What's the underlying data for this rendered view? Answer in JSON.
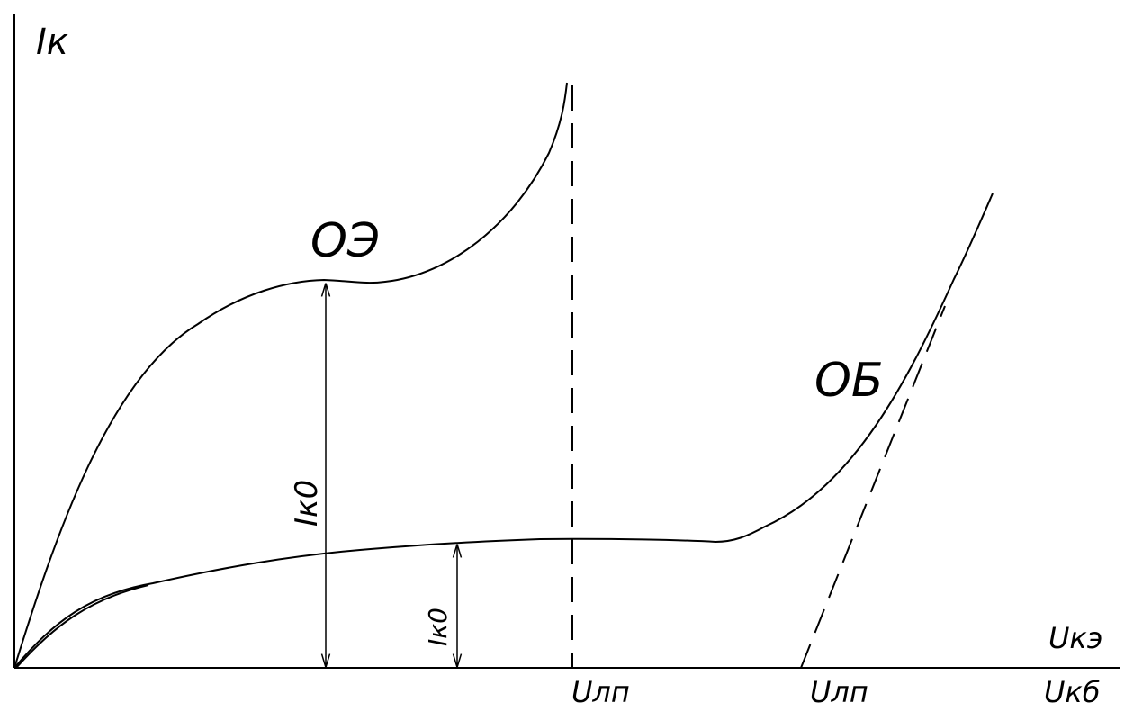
{
  "axes": {
    "y_label": "Iк",
    "x_label_top": "Uкэ",
    "x_label_bottom": "Uкб"
  },
  "curves": [
    {
      "label": "ОЭ"
    },
    {
      "label": "ОБ"
    }
  ],
  "annotations": [
    {
      "label": "Iк0"
    },
    {
      "label": "Iк0"
    }
  ],
  "breakdown_labels": [
    {
      "label": "Uлп"
    },
    {
      "label": "Uлп"
    }
  ]
}
